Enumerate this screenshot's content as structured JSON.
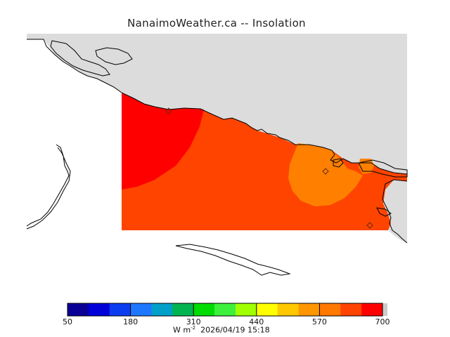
{
  "title": "NanaimoWeather.ca -- Insolation",
  "colors": {
    "land_background": "#dcdcdc",
    "insolation_high": "#ff0000",
    "insolation_mid": "#ff4400",
    "insolation_lower": "#ff8000",
    "coastline": "#000000"
  },
  "colorbar": {
    "colors": [
      "#0a0096",
      "#0000d8",
      "#0a3cf0",
      "#1e78ff",
      "#00a0c8",
      "#00b450",
      "#00dc00",
      "#3cf03c",
      "#a0ff00",
      "#ffff00",
      "#ffc800",
      "#ff9600",
      "#ff7800",
      "#ff4400",
      "#ff0000"
    ],
    "tick_labels": [
      "50",
      "180",
      "310",
      "440",
      "570",
      "700"
    ],
    "units_label": "W m",
    "units_exponent": "-2"
  },
  "timestamp": "2026/04/19 15:18",
  "stations": [
    "station-nw",
    "station-center",
    "station-se"
  ]
}
